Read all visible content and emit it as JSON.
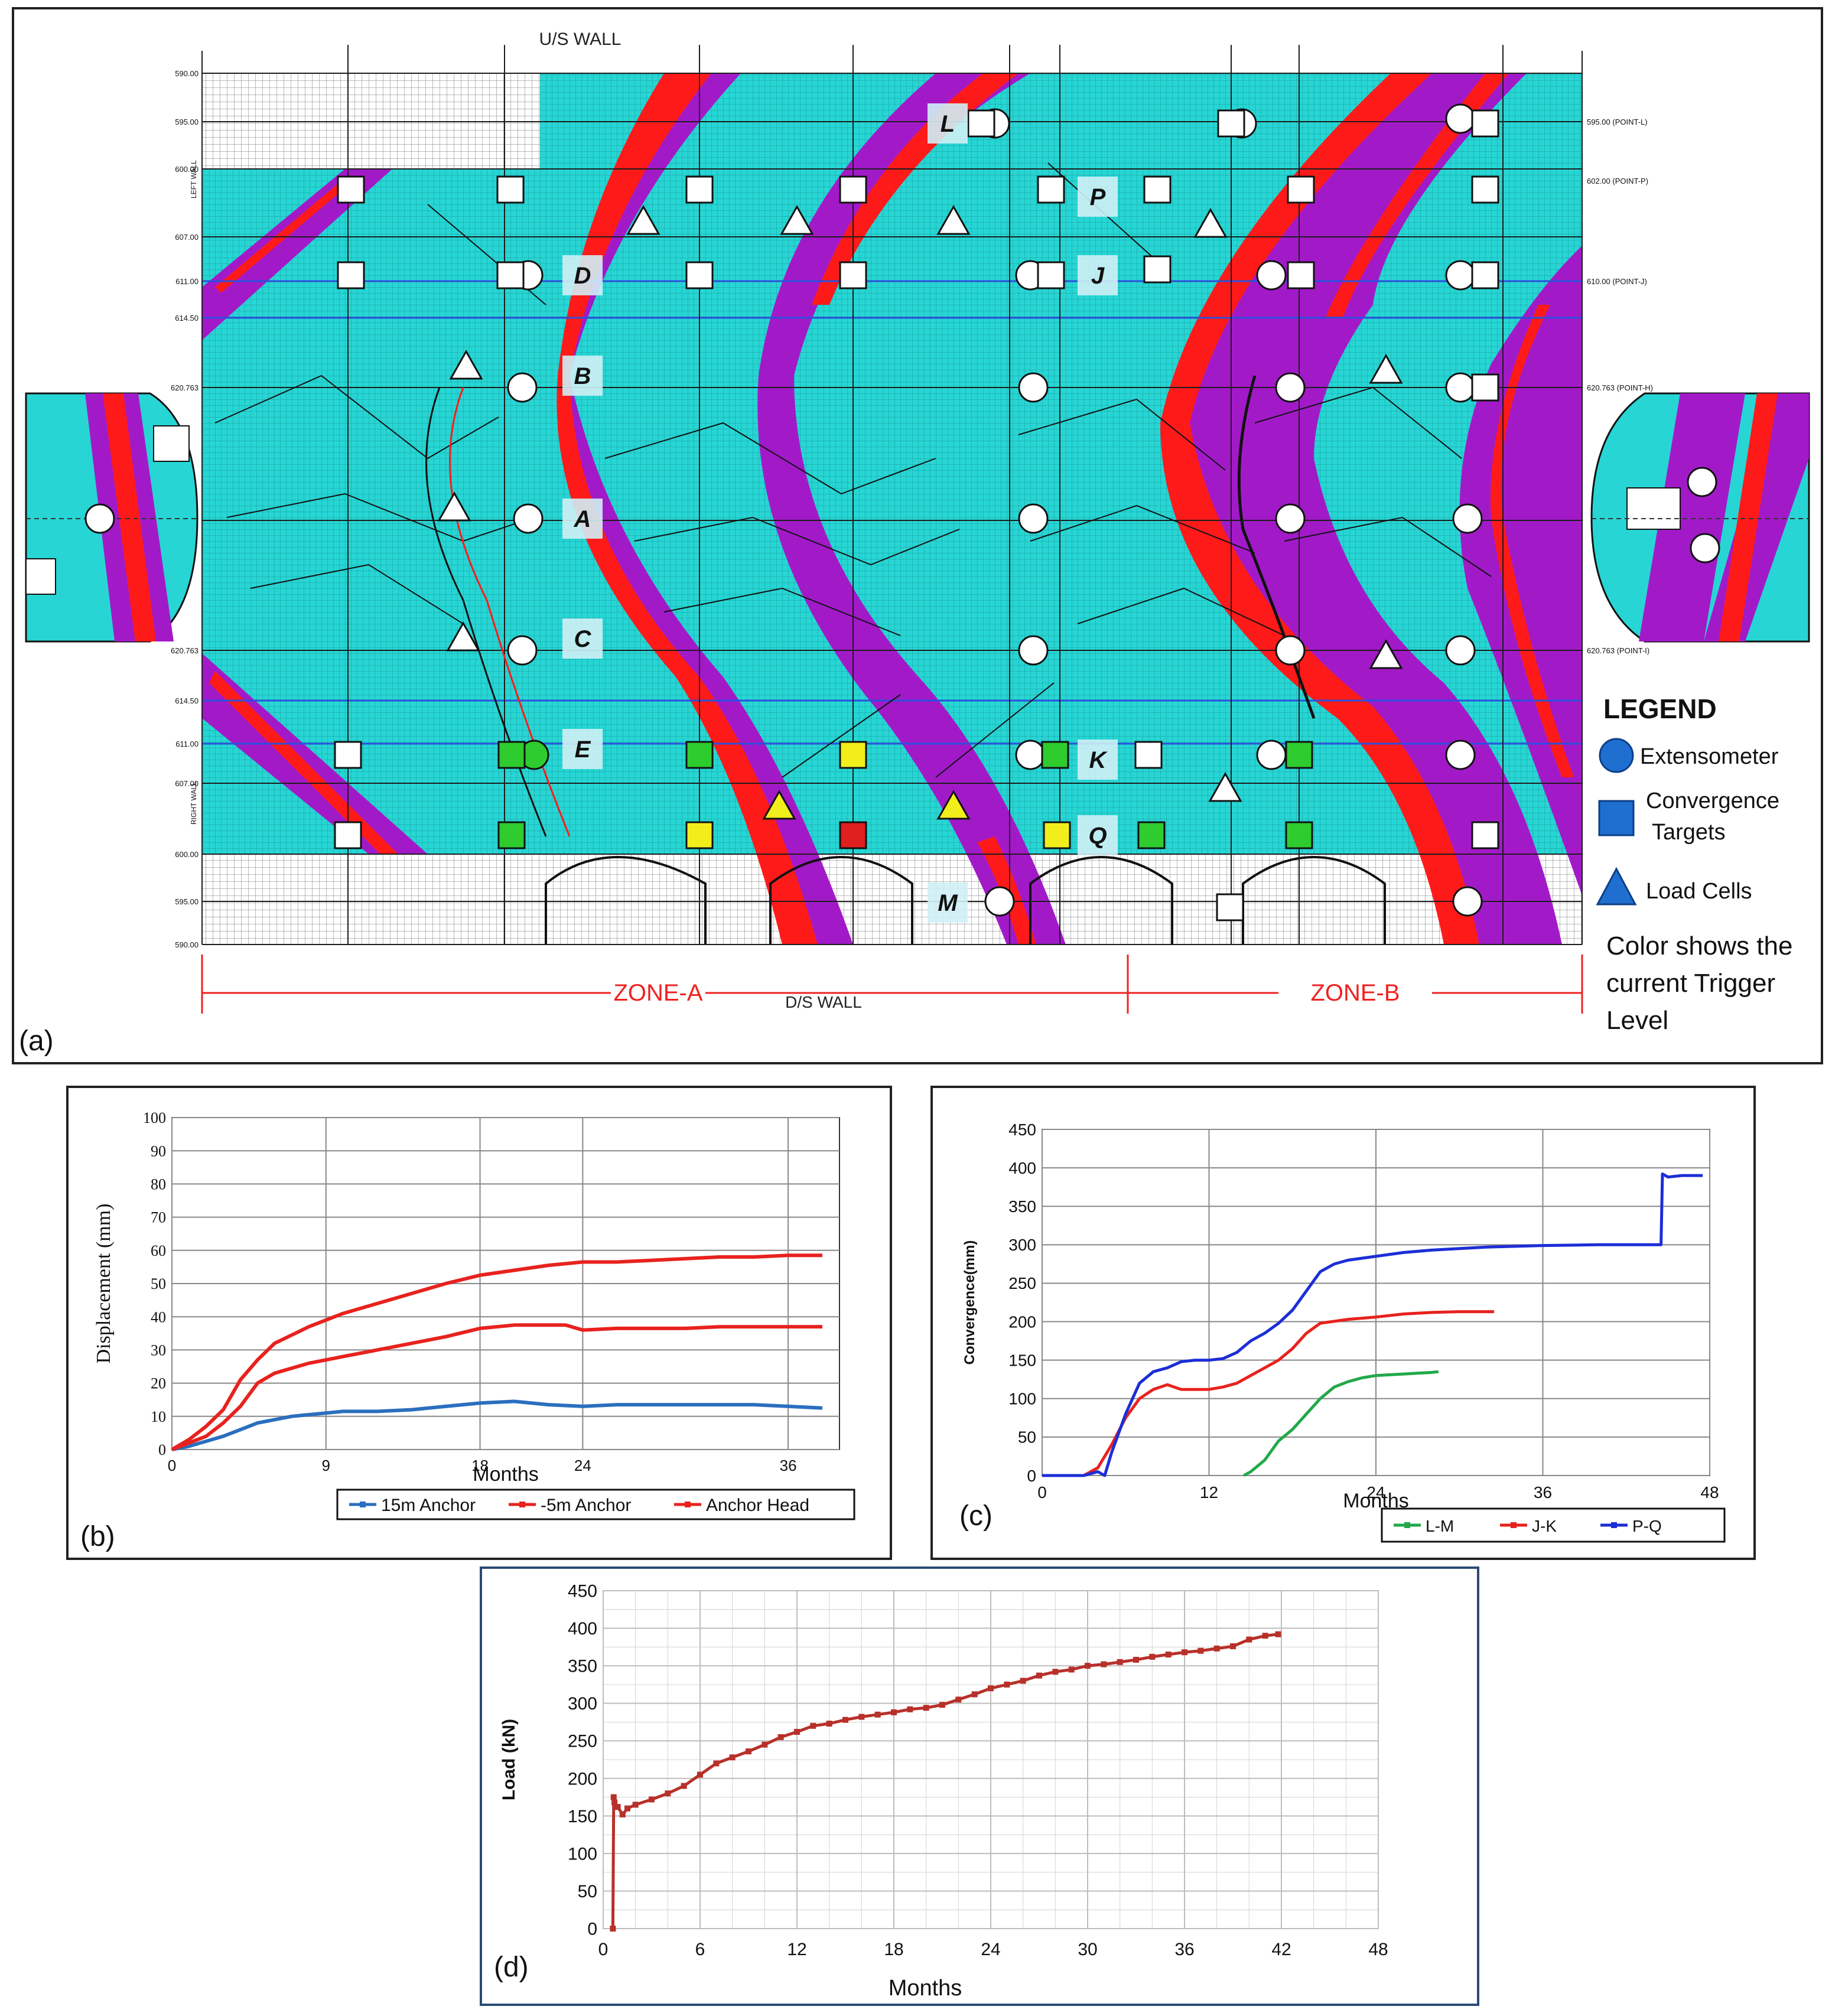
{
  "panel_labels": {
    "a": "(a)",
    "b": "(b)",
    "c": "(c)",
    "d": "(d)"
  },
  "map": {
    "us_wall": "U/S WALL",
    "ds_wall": "D/S WALL",
    "zone_a": "ZONE-A",
    "zone_b": "ZONE-B",
    "left_wall": "LEFT WALL",
    "right_wall": "RIGHT WALL",
    "elevations": [
      "590.00",
      "595.00",
      "600.00",
      "607.00",
      "611.00",
      "614.50",
      "620.763",
      "620.763",
      "614.50",
      "611.00",
      "607.00",
      "600.00",
      "595.00",
      "590.00"
    ],
    "right_points": [
      "595.00 (POINT-L)",
      "602.00 (POINT-P)",
      "610.00 (POINT-J)",
      "620.763 (POINT-H)",
      "620.763 (POINT-I)"
    ],
    "section_labels": [
      "L",
      "P",
      "J",
      "D",
      "B",
      "A",
      "C",
      "E",
      "K",
      "Q",
      "M"
    ],
    "legend": {
      "title": "LEGEND",
      "extensometer": "Extensometer",
      "convergence_1": "Convergence",
      "convergence_2": "Targets",
      "load_cells": "Load Cells",
      "note_1": "Color shows the",
      "note_2": "current Trigger",
      "note_3": "Level"
    },
    "colors": {
      "rock": "#27d6d4",
      "band": "#a21ac8",
      "fault": "#ff1a1a",
      "legend_icon": "#1e6fd0"
    }
  },
  "chart_data": [
    {
      "id": "b",
      "type": "line",
      "title": "",
      "xlabel": "Months",
      "ylabel": "Displacement (mm)",
      "xlim": [
        0,
        39
      ],
      "ylim": [
        0,
        100
      ],
      "xticks": [
        0,
        9,
        18,
        24,
        36
      ],
      "yticks": [
        0,
        10,
        20,
        30,
        40,
        50,
        60,
        70,
        80,
        90,
        100
      ],
      "series": [
        {
          "name": "15m Anchor",
          "color": "#2a6fbf",
          "x": [
            0,
            1,
            2,
            3,
            4,
            5,
            6,
            7,
            8,
            9,
            10,
            12,
            14,
            16,
            18,
            20,
            22,
            24,
            26,
            28,
            30,
            32,
            34,
            36,
            38
          ],
          "y": [
            0,
            1,
            2.5,
            4,
            6,
            8,
            9,
            10,
            10.5,
            11,
            11.5,
            11.5,
            12,
            13,
            14,
            14.5,
            13.5,
            13,
            13.5,
            13.5,
            13.5,
            13.5,
            13.5,
            13,
            12.5
          ]
        },
        {
          "name": "-5m Anchor",
          "color": "#e8221e",
          "x": [
            0,
            1,
            2,
            3,
            4,
            5,
            6,
            8,
            10,
            12,
            14,
            16,
            18,
            20,
            22,
            23,
            24,
            26,
            28,
            30,
            32,
            34,
            36,
            38
          ],
          "y": [
            0,
            2,
            4,
            8,
            13,
            20,
            23,
            26,
            28,
            30,
            32,
            34,
            36.5,
            37.5,
            37.5,
            37.5,
            36,
            36.5,
            36.5,
            36.5,
            37,
            37,
            37,
            37
          ]
        },
        {
          "name": "Anchor Head",
          "color": "#e8221e",
          "x": [
            0,
            1,
            2,
            3,
            4,
            5,
            6,
            8,
            10,
            12,
            14,
            16,
            18,
            20,
            22,
            24,
            26,
            28,
            30,
            32,
            34,
            36,
            38
          ],
          "y": [
            0,
            3,
            7,
            12,
            21,
            27,
            32,
            37,
            41,
            44,
            47,
            50,
            52.5,
            54,
            55.5,
            56.5,
            56.5,
            57,
            57.5,
            58,
            58,
            58.5,
            58.5
          ]
        }
      ],
      "legend": [
        "15m Anchor",
        "-5m Anchor",
        "Anchor Head"
      ]
    },
    {
      "id": "c",
      "type": "line",
      "title": "",
      "xlabel": "Months",
      "ylabel": "Convergence(mm)",
      "xlim": [
        0,
        48
      ],
      "ylim": [
        0,
        450
      ],
      "xticks": [
        0,
        12,
        24,
        36,
        48
      ],
      "yticks": [
        0,
        50,
        100,
        150,
        200,
        250,
        300,
        350,
        400,
        450
      ],
      "series": [
        {
          "name": "L-M",
          "color": "#22a84a",
          "x": [
            14.5,
            15,
            16,
            17,
            18,
            19,
            20,
            21,
            22,
            23,
            24,
            25,
            26,
            27,
            28,
            28.5
          ],
          "y": [
            0,
            5,
            20,
            45,
            60,
            80,
            100,
            115,
            122,
            127,
            130,
            131,
            132,
            133,
            134,
            135
          ]
        },
        {
          "name": "J-K",
          "color": "#e8221e",
          "x": [
            0,
            3,
            4,
            5,
            6,
            7,
            8,
            9,
            10,
            12,
            13,
            14,
            15,
            16,
            17,
            18,
            19,
            20,
            22,
            24,
            26,
            28,
            30,
            32,
            32.5
          ],
          "y": [
            0,
            0,
            10,
            40,
            75,
            100,
            112,
            118,
            112,
            112,
            115,
            120,
            130,
            140,
            150,
            165,
            185,
            198,
            203,
            206,
            210,
            212,
            213,
            213,
            213
          ]
        },
        {
          "name": "P-Q",
          "color": "#1c2ed6",
          "x": [
            0,
            3,
            4,
            4.5,
            5,
            6,
            7,
            8,
            9,
            10,
            11,
            12,
            13,
            14,
            15,
            16,
            17,
            18,
            19,
            20,
            21,
            22,
            24,
            26,
            28,
            30,
            32,
            36,
            40,
            43,
            44.5,
            44.6,
            45,
            46,
            47.5
          ],
          "y": [
            0,
            0,
            5,
            0,
            30,
            80,
            120,
            135,
            140,
            148,
            150,
            150,
            152,
            160,
            175,
            185,
            198,
            215,
            240,
            265,
            275,
            280,
            285,
            290,
            293,
            295,
            297,
            299,
            300,
            300,
            300,
            392,
            388,
            390,
            390
          ]
        }
      ],
      "legend": [
        "L-M",
        "J-K",
        "P-Q"
      ]
    },
    {
      "id": "d",
      "type": "line",
      "title": "",
      "xlabel": "Months",
      "ylabel": "Load (kN)",
      "xlim": [
        0,
        48
      ],
      "ylim": [
        0,
        450
      ],
      "xticks": [
        0,
        6,
        12,
        18,
        24,
        30,
        36,
        42,
        48
      ],
      "yticks": [
        0,
        50,
        100,
        150,
        200,
        250,
        300,
        350,
        400,
        450
      ],
      "series": [
        {
          "name": "Load",
          "color": "#b8302a",
          "x": [
            0.6,
            0.65,
            0.7,
            0.9,
            1.2,
            1.5,
            2,
            3,
            4,
            5,
            6,
            7,
            8,
            9,
            10,
            11,
            12,
            13,
            14,
            15,
            16,
            17,
            18,
            19,
            20,
            21,
            22,
            23,
            24,
            25,
            26,
            27,
            28,
            29,
            30,
            31,
            32,
            33,
            34,
            35,
            36,
            37,
            38,
            39,
            40,
            41,
            41.8
          ],
          "y": [
            0,
            175,
            168,
            162,
            152,
            160,
            165,
            172,
            180,
            190,
            205,
            220,
            228,
            236,
            245,
            255,
            262,
            270,
            273,
            278,
            282,
            285,
            288,
            292,
            294,
            298,
            305,
            312,
            320,
            325,
            330,
            337,
            342,
            345,
            350,
            352,
            355,
            358,
            362,
            365,
            368,
            370,
            373,
            376,
            385,
            390,
            392
          ]
        }
      ],
      "legend": []
    }
  ]
}
